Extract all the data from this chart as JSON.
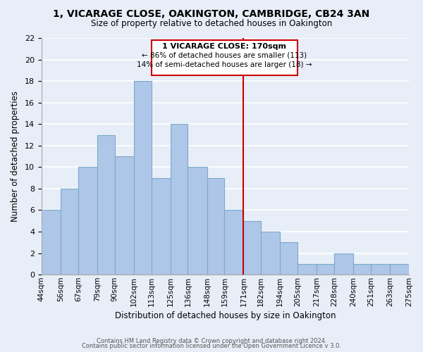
{
  "title": "1, VICARAGE CLOSE, OAKINGTON, CAMBRIDGE, CB24 3AN",
  "subtitle": "Size of property relative to detached houses in Oakington",
  "xlabel": "Distribution of detached houses by size in Oakington",
  "ylabel": "Number of detached properties",
  "bin_edges": [
    44,
    56,
    67,
    79,
    90,
    102,
    113,
    125,
    136,
    148,
    159,
    171,
    182,
    194,
    205,
    217,
    228,
    240,
    251,
    263,
    275
  ],
  "bin_edge_labels": [
    "44sqm",
    "56sqm",
    "67sqm",
    "79sqm",
    "90sqm",
    "102sqm",
    "113sqm",
    "125sqm",
    "136sqm",
    "148sqm",
    "159sqm",
    "171sqm",
    "182sqm",
    "194sqm",
    "205sqm",
    "217sqm",
    "228sqm",
    "240sqm",
    "251sqm",
    "263sqm",
    "275sqm"
  ],
  "bar_heights": [
    6,
    8,
    10,
    13,
    11,
    18,
    9,
    14,
    10,
    9,
    6,
    5,
    4,
    3,
    1,
    1,
    2,
    1,
    1,
    1
  ],
  "bar_color": "#aec6e8",
  "bar_edge_color": "#7aaacc",
  "vline_value": 171,
  "vline_color": "#cc0000",
  "annotation_title": "1 VICARAGE CLOSE: 170sqm",
  "annotation_line1": "← 86% of detached houses are smaller (113)",
  "annotation_line2": "14% of semi-detached houses are larger (18) →",
  "footer1": "Contains HM Land Registry data © Crown copyright and database right 2024.",
  "footer2": "Contains public sector information licensed under the Open Government Licence v 3.0.",
  "ylim": [
    0,
    22
  ],
  "background_color": "#e8eef8",
  "grid_color": "#ffffff",
  "annotation_box_color": "#ffffff",
  "annotation_box_edge": "#cc0000"
}
